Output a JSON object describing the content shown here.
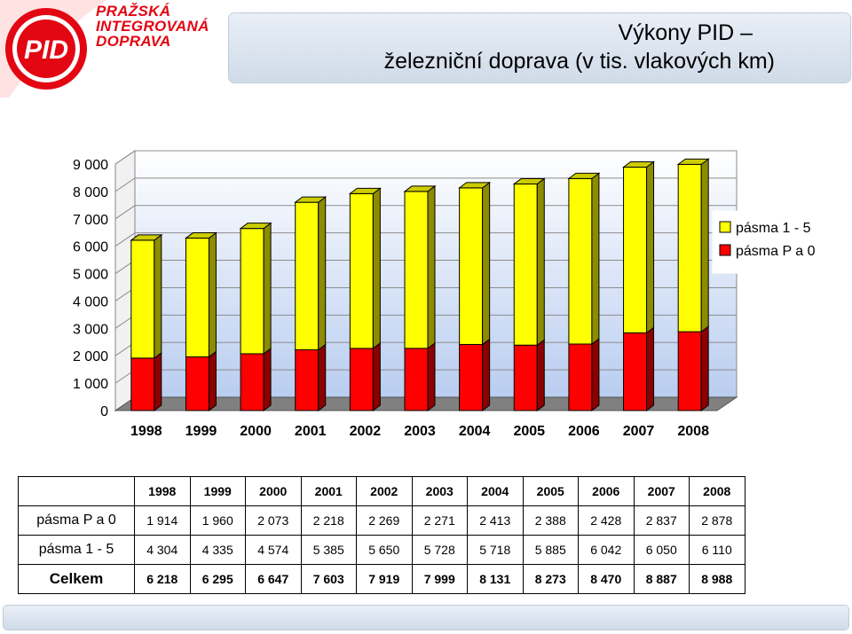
{
  "brand": {
    "logo_text": "PID",
    "name_lines": [
      "PRAŽSKÁ",
      "INTEGROVANÁ",
      "DOPRAVA"
    ],
    "color": "#e30613"
  },
  "title": {
    "line1": "Výkony PID –",
    "line2": "železniční doprava (v tis. vlakových km)"
  },
  "chart_data": {
    "type": "bar",
    "stacked": true,
    "three_d": true,
    "categories": [
      "1998",
      "1999",
      "2000",
      "2001",
      "2002",
      "2003",
      "2004",
      "2005",
      "2006",
      "2007",
      "2008"
    ],
    "series": [
      {
        "name": "pásma P a 0",
        "color": "#ff0000",
        "values": [
          1914,
          1960,
          2073,
          2218,
          2269,
          2271,
          2413,
          2388,
          2428,
          2837,
          2878
        ]
      },
      {
        "name": "pásma 1 - 5",
        "color": "#ffff00",
        "values": [
          4304,
          4335,
          4574,
          5385,
          5650,
          5728,
          5718,
          5885,
          6042,
          6050,
          6110
        ]
      }
    ],
    "ylim": [
      0,
      9000
    ],
    "yticks": [
      "0",
      "1 000",
      "2 000",
      "3 000",
      "4 000",
      "5 000",
      "6 000",
      "7 000",
      "8 000",
      "9 000"
    ],
    "legend": [
      {
        "label": "pásma 1 - 5",
        "color": "#ffff00"
      },
      {
        "label": "pásma P a 0",
        "color": "#ff0000"
      }
    ],
    "legend_position": "right",
    "grid": true
  },
  "table": {
    "years": [
      "1998",
      "1999",
      "2000",
      "2001",
      "2002",
      "2003",
      "2004",
      "2005",
      "2006",
      "2007",
      "2008"
    ],
    "rows": [
      {
        "label": "pásma P a 0",
        "values": [
          "1 914",
          "1 960",
          "2 073",
          "2 218",
          "2 269",
          "2 271",
          "2 413",
          "2 388",
          "2 428",
          "2 837",
          "2 878"
        ]
      },
      {
        "label": "pásma 1 - 5",
        "values": [
          "4 304",
          "4 335",
          "4 574",
          "5 385",
          "5 650",
          "5 728",
          "5 718",
          "5 885",
          "6 042",
          "6 050",
          "6 110"
        ]
      },
      {
        "label": "Celkem",
        "values": [
          "6 218",
          "6 295",
          "6 647",
          "7 603",
          "7 919",
          "7 999",
          "8 131",
          "8 273",
          "8 470",
          "8 887",
          "8 988"
        ]
      }
    ]
  }
}
